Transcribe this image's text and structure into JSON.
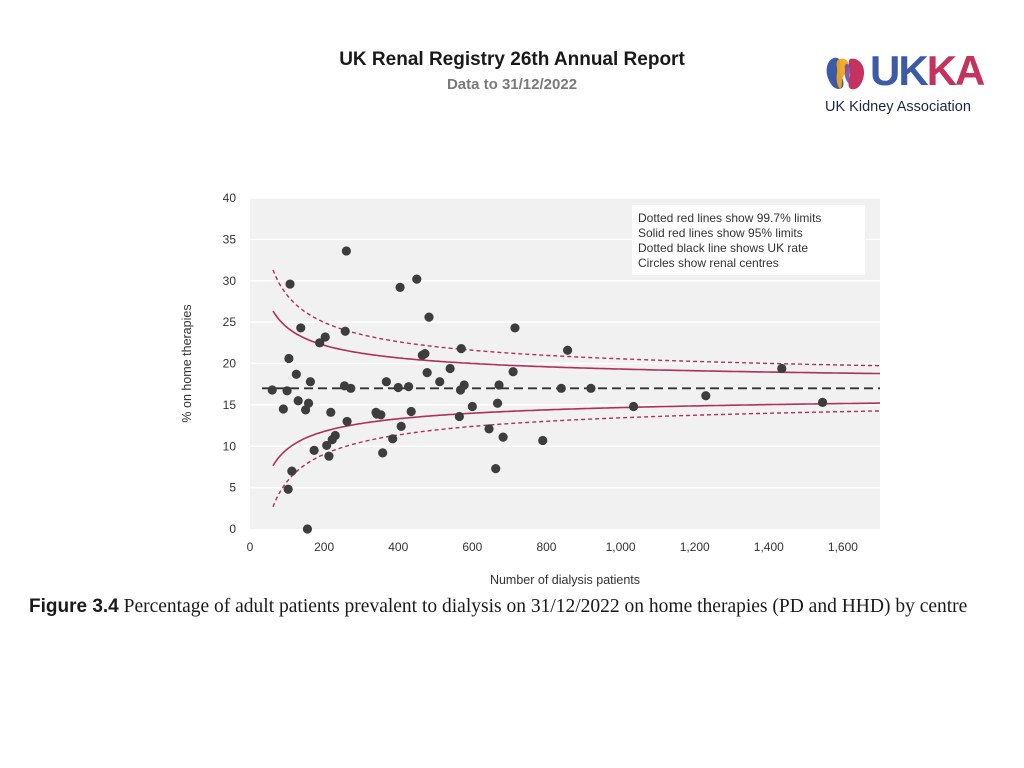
{
  "header": {
    "title": "UK Renal Registry 26th Annual Report",
    "subtitle": "Data to 31/12/2022"
  },
  "logo": {
    "wordmark": "UKKA",
    "tagline": "UK Kidney Association",
    "colors": {
      "u": "#3b5ba8",
      "k1": "#3b5ba8",
      "k2": "#c4325d",
      "a": "#c4325d",
      "tagline": "#1b2740"
    }
  },
  "caption": {
    "figure": "Figure 3.4",
    "text": "Percentage of adult patients prevalent to dialysis on 31/12/2022 on home therapies (PD and HHD) by centre"
  },
  "chart_data": {
    "type": "scatter",
    "xlabel": "Number of dialysis patients",
    "ylabel": "% on home therapies",
    "xlim": [
      0,
      1700
    ],
    "ylim": [
      0,
      40
    ],
    "xticks": [
      0,
      200,
      400,
      600,
      800,
      1000,
      1200,
      1400,
      1600
    ],
    "xtick_labels": [
      "0",
      "200",
      "400",
      "600",
      "800",
      "1,000",
      "1,200",
      "1,400",
      "1,600"
    ],
    "yticks": [
      0,
      5,
      10,
      15,
      20,
      25,
      30,
      35,
      40
    ],
    "ytick_labels": [
      "0",
      "5",
      "10",
      "15",
      "20",
      "25",
      "30",
      "35",
      "40"
    ],
    "grid": true,
    "uk_rate": 17.0,
    "legend": {
      "position": "top-right",
      "lines": [
        "Dotted red lines show 99.7% limits",
        "Solid red lines show 95% limits",
        "Dotted black line shows UK rate",
        "Circles show renal centres"
      ]
    },
    "colors": {
      "points": "#3d3d3d",
      "limits": "#b03058",
      "uk_rate": "#333333",
      "plot_bg": "#f1f1f1"
    },
    "points": [
      {
        "x": 60,
        "y": 16.8
      },
      {
        "x": 90,
        "y": 14.5
      },
      {
        "x": 100,
        "y": 16.7
      },
      {
        "x": 105,
        "y": 20.6
      },
      {
        "x": 108,
        "y": 29.6
      },
      {
        "x": 103,
        "y": 4.8
      },
      {
        "x": 113,
        "y": 7.0
      },
      {
        "x": 125,
        "y": 18.7
      },
      {
        "x": 130,
        "y": 15.5
      },
      {
        "x": 137,
        "y": 24.3
      },
      {
        "x": 150,
        "y": 14.4
      },
      {
        "x": 158,
        "y": 15.2
      },
      {
        "x": 163,
        "y": 17.8
      },
      {
        "x": 173,
        "y": 9.5
      },
      {
        "x": 155,
        "y": 0.0
      },
      {
        "x": 188,
        "y": 22.5
      },
      {
        "x": 203,
        "y": 23.2
      },
      {
        "x": 207,
        "y": 10.1
      },
      {
        "x": 213,
        "y": 8.8
      },
      {
        "x": 218,
        "y": 14.1
      },
      {
        "x": 222,
        "y": 10.8
      },
      {
        "x": 230,
        "y": 11.3
      },
      {
        "x": 255,
        "y": 17.3
      },
      {
        "x": 257,
        "y": 23.9
      },
      {
        "x": 260,
        "y": 33.6
      },
      {
        "x": 262,
        "y": 13.0
      },
      {
        "x": 272,
        "y": 17.0
      },
      {
        "x": 340,
        "y": 14.1
      },
      {
        "x": 342,
        "y": 13.9
      },
      {
        "x": 353,
        "y": 13.8
      },
      {
        "x": 358,
        "y": 9.2
      },
      {
        "x": 368,
        "y": 17.8
      },
      {
        "x": 385,
        "y": 10.9
      },
      {
        "x": 400,
        "y": 17.1
      },
      {
        "x": 405,
        "y": 29.2
      },
      {
        "x": 408,
        "y": 12.4
      },
      {
        "x": 428,
        "y": 17.2
      },
      {
        "x": 435,
        "y": 14.2
      },
      {
        "x": 450,
        "y": 30.2
      },
      {
        "x": 465,
        "y": 21.0
      },
      {
        "x": 472,
        "y": 21.2
      },
      {
        "x": 478,
        "y": 18.9
      },
      {
        "x": 483,
        "y": 25.6
      },
      {
        "x": 512,
        "y": 17.8
      },
      {
        "x": 540,
        "y": 19.4
      },
      {
        "x": 565,
        "y": 13.6
      },
      {
        "x": 568,
        "y": 16.8
      },
      {
        "x": 570,
        "y": 21.8
      },
      {
        "x": 578,
        "y": 17.4
      },
      {
        "x": 600,
        "y": 14.8
      },
      {
        "x": 645,
        "y": 12.1
      },
      {
        "x": 663,
        "y": 7.3
      },
      {
        "x": 668,
        "y": 15.2
      },
      {
        "x": 672,
        "y": 17.4
      },
      {
        "x": 683,
        "y": 11.1
      },
      {
        "x": 710,
        "y": 19.0
      },
      {
        "x": 715,
        "y": 24.3
      },
      {
        "x": 790,
        "y": 10.7
      },
      {
        "x": 840,
        "y": 17.0
      },
      {
        "x": 857,
        "y": 21.6
      },
      {
        "x": 920,
        "y": 17.0
      },
      {
        "x": 1035,
        "y": 14.8
      },
      {
        "x": 1230,
        "y": 16.1
      },
      {
        "x": 1435,
        "y": 19.4
      },
      {
        "x": 1545,
        "y": 15.3
      }
    ]
  }
}
